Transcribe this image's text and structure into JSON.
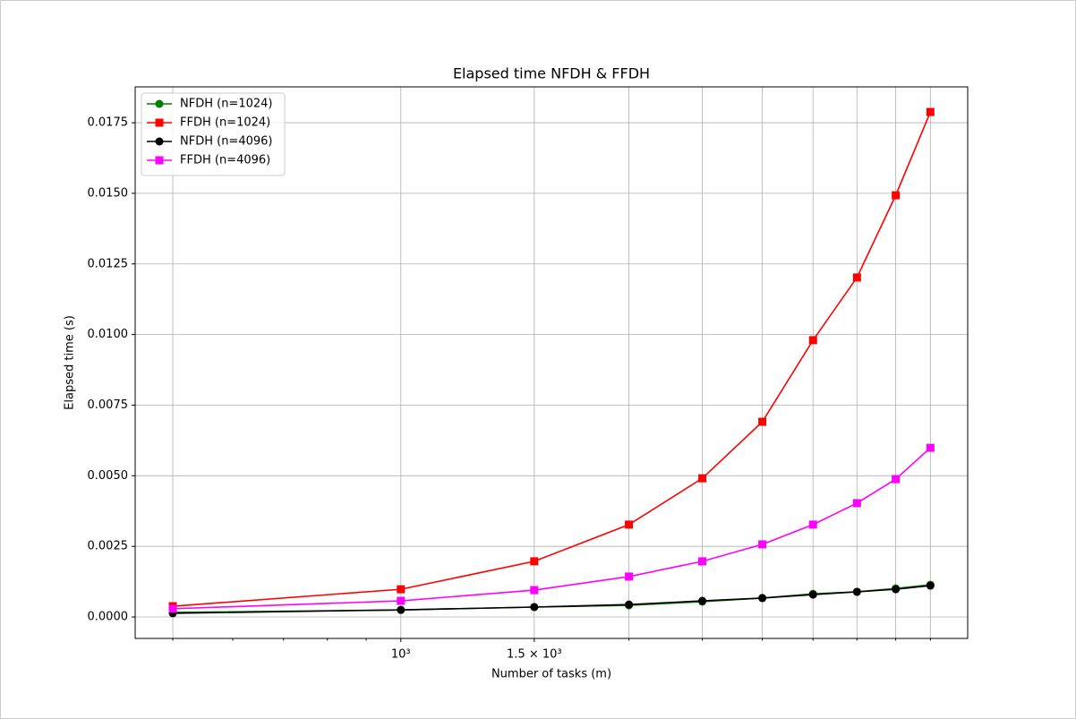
{
  "chart_data": {
    "type": "line",
    "title": "Elapsed time NFDH & FFDH",
    "x_label": "Number of tasks (m)",
    "y_label": "Elapsed time (s)",
    "x": [
      500,
      1000,
      1500,
      2000,
      2500,
      3000,
      3500,
      4000,
      4500,
      5000
    ],
    "xscale": "log",
    "xlim": [
      446,
      5600
    ],
    "xticks": [
      {
        "value": 500,
        "label": null
      },
      {
        "value": 1000,
        "label": "10³"
      },
      {
        "value": 1500,
        "label": "1.5 × 10³"
      },
      {
        "value": 2000,
        "label": null
      },
      {
        "value": 2500,
        "label": null
      },
      {
        "value": 3000,
        "label": null
      },
      {
        "value": 3500,
        "label": null
      },
      {
        "value": 4000,
        "label": null
      },
      {
        "value": 4500,
        "label": null
      },
      {
        "value": 5000,
        "label": null
      }
    ],
    "xminorticks": [
      600,
      700,
      800,
      900
    ],
    "ylim": [
      -0.00076,
      0.01877
    ],
    "yticks": [
      {
        "value": 0,
        "label": "0.0000"
      },
      {
        "value": 0.0025,
        "label": "0.0025"
      },
      {
        "value": 0.005,
        "label": "0.0050"
      },
      {
        "value": 0.0075,
        "label": "0.0075"
      },
      {
        "value": 0.01,
        "label": "0.0100"
      },
      {
        "value": 0.0125,
        "label": "0.0125"
      },
      {
        "value": 0.015,
        "label": "0.0150"
      },
      {
        "value": 0.0175,
        "label": "0.0175"
      }
    ],
    "grid": true,
    "legend": "upper-left",
    "series": [
      {
        "name": "NFDH (n=1024)",
        "color": "#008000",
        "marker": "circle",
        "values": [
          0.00016,
          0.00025,
          0.00035,
          0.00041,
          0.00054,
          0.00067,
          0.00082,
          0.00089,
          0.00101,
          0.00114
        ]
      },
      {
        "name": "FFDH (n=1024)",
        "color": "#ff0000",
        "marker": "square",
        "values": [
          0.00038,
          0.00098,
          0.00197,
          0.00327,
          0.00491,
          0.00691,
          0.0098,
          0.01202,
          0.01493,
          0.01788
        ]
      },
      {
        "name": "NFDH (n=4096)",
        "color": "#000000",
        "marker": "circle",
        "values": [
          0.00013,
          0.00025,
          0.00035,
          0.00044,
          0.00057,
          0.00067,
          0.00079,
          0.00089,
          0.00098,
          0.00111
        ]
      },
      {
        "name": "FFDH (n=4096)",
        "color": "#ff00ff",
        "marker": "square",
        "values": [
          0.00029,
          0.00057,
          0.00095,
          0.00143,
          0.00197,
          0.00257,
          0.00327,
          0.00403,
          0.00488,
          0.00599
        ]
      }
    ]
  }
}
